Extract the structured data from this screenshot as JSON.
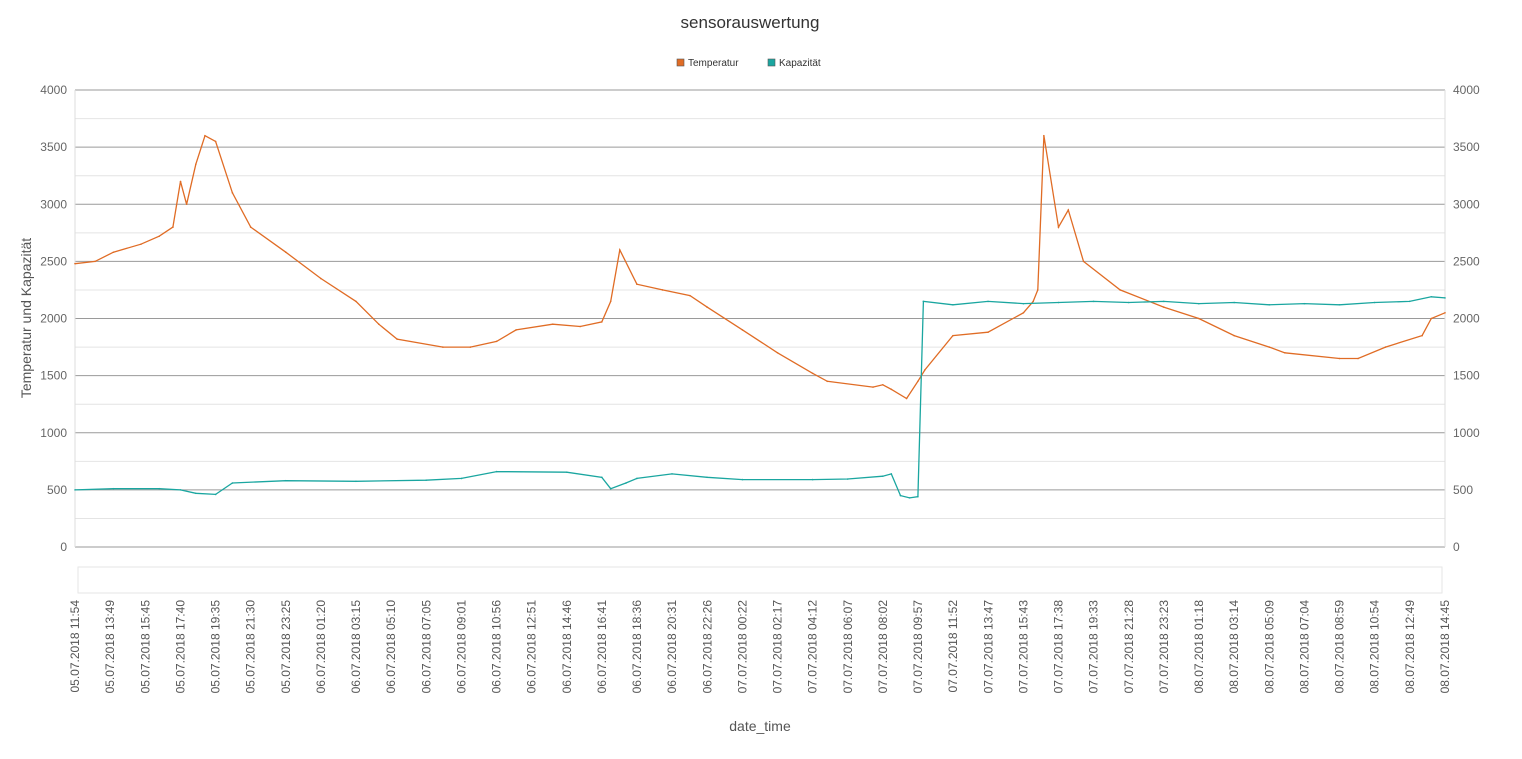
{
  "chart_data": {
    "type": "line",
    "title": "sensorauswertung",
    "xlabel": "date_time",
    "ylabel": "Temperatur und Kapazität",
    "ylim": [
      0,
      4000
    ],
    "yticks": [
      "0",
      "500",
      "1000",
      "1500",
      "2000",
      "2500",
      "3000",
      "3500",
      "4000"
    ],
    "y_major_step": 500,
    "grid": true,
    "legend_position": "top-center",
    "x_tick_labels": [
      "05.07.2018  11:54",
      "05.07.2018  13:49",
      "05.07.2018  15:45",
      "05.07.2018  17:40",
      "05.07.2018  19:35",
      "05.07.2018  21:30",
      "05.07.2018  23:25",
      "06.07.2018  01:20",
      "06.07.2018  03:15",
      "06.07.2018  05:10",
      "06.07.2018  07:05",
      "06.07.2018  09:01",
      "06.07.2018  10:56",
      "06.07.2018  12:51",
      "06.07.2018  14:46",
      "06.07.2018  16:41",
      "06.07.2018  18:36",
      "06.07.2018  20:31",
      "06.07.2018  22:26",
      "07.07.2018  00:22",
      "07.07.2018  02:17",
      "07.07.2018  04:12",
      "07.07.2018  06:07",
      "07.07.2018  08:02",
      "07.07.2018  09:57",
      "07.07.2018  11:52",
      "07.07.2018  13:47",
      "07.07.2018  15:43",
      "07.07.2018  17:38",
      "07.07.2018  19:33",
      "07.07.2018  21:28",
      "07.07.2018  23:23",
      "08.07.2018  01:18",
      "08.07.2018  03:14",
      "08.07.2018  05:09",
      "08.07.2018  07:04",
      "08.07.2018  08:59",
      "08.07.2018  10:54",
      "08.07.2018  12:49",
      "08.07.2018  14:45"
    ],
    "x_range": [
      "05.07.2018 11:54",
      "08.07.2018 14:45"
    ],
    "series": [
      {
        "name": "Temperatur",
        "color": "#e06c25",
        "x": [
          "05.07.2018 11:54",
          "05.07.2018 13:00",
          "05.07.2018 14:00",
          "05.07.2018 15:30",
          "05.07.2018 16:30",
          "05.07.2018 17:15",
          "05.07.2018 17:40",
          "05.07.2018 18:00",
          "05.07.2018 18:30",
          "05.07.2018 19:00",
          "05.07.2018 19:35",
          "05.07.2018 20:30",
          "05.07.2018 21:30",
          "05.07.2018 23:25",
          "06.07.2018 01:20",
          "06.07.2018 03:15",
          "06.07.2018 04:30",
          "06.07.2018 05:30",
          "06.07.2018 08:00",
          "06.07.2018 09:30",
          "06.07.2018 10:56",
          "06.07.2018 12:00",
          "06.07.2018 14:00",
          "06.07.2018 15:30",
          "06.07.2018 16:41",
          "06.07.2018 17:10",
          "06.07.2018 17:40",
          "06.07.2018 18:36",
          "06.07.2018 20:00",
          "06.07.2018 21:30",
          "06.07.2018 22:26",
          "07.07.2018 00:22",
          "07.07.2018 02:17",
          "07.07.2018 04:12",
          "07.07.2018 05:00",
          "07.07.2018 07:30",
          "07.07.2018 08:02",
          "07.07.2018 08:30",
          "07.07.2018 09:20",
          "07.07.2018 09:57",
          "07.07.2018 10:20",
          "07.07.2018 11:52",
          "07.07.2018 13:47",
          "07.07.2018 15:43",
          "07.07.2018 16:15",
          "07.07.2018 16:30",
          "07.07.2018 16:50",
          "07.07.2018 17:38",
          "07.07.2018 18:10",
          "07.07.2018 19:00",
          "07.07.2018 21:00",
          "07.07.2018 23:23",
          "08.07.2018 01:18",
          "08.07.2018 03:14",
          "08.07.2018 05:09",
          "08.07.2018 06:00",
          "08.07.2018 08:59",
          "08.07.2018 10:00",
          "08.07.2018 11:30",
          "08.07.2018 13:30",
          "08.07.2018 14:00",
          "08.07.2018 14:45"
        ],
        "values": [
          2480,
          2500,
          2580,
          2650,
          2720,
          2800,
          3200,
          3000,
          3350,
          3600,
          3550,
          3100,
          2800,
          2580,
          2350,
          2150,
          1950,
          1820,
          1750,
          1750,
          1800,
          1900,
          1950,
          1930,
          1970,
          2150,
          2600,
          2300,
          2250,
          2200,
          2100,
          1900,
          1700,
          1520,
          1450,
          1400,
          1420,
          1380,
          1300,
          1450,
          1550,
          1850,
          1880,
          2050,
          2150,
          2250,
          3600,
          2800,
          2950,
          2500,
          2250,
          2100,
          2000,
          1850,
          1750,
          1700,
          1650,
          1650,
          1750,
          1850,
          2000,
          2050
        ]
      },
      {
        "name": "Kapazität",
        "color": "#1aa6a0",
        "x": [
          "05.07.2018 11:54",
          "05.07.2018 14:00",
          "05.07.2018 16:30",
          "05.07.2018 17:40",
          "05.07.2018 18:30",
          "05.07.2018 19:35",
          "05.07.2018 20:30",
          "05.07.2018 23:25",
          "06.07.2018 03:15",
          "06.07.2018 07:05",
          "06.07.2018 09:01",
          "06.07.2018 10:56",
          "06.07.2018 14:46",
          "06.07.2018 16:41",
          "06.07.2018 17:10",
          "06.07.2018 18:00",
          "06.07.2018 18:36",
          "06.07.2018 20:31",
          "06.07.2018 22:26",
          "07.07.2018 00:22",
          "07.07.2018 04:12",
          "07.07.2018 06:07",
          "07.07.2018 08:02",
          "07.07.2018 08:30",
          "07.07.2018 09:00",
          "07.07.2018 09:30",
          "07.07.2018 09:57",
          "07.07.2018 10:15",
          "07.07.2018 11:52",
          "07.07.2018 13:47",
          "07.07.2018 15:43",
          "07.07.2018 17:38",
          "07.07.2018 19:33",
          "07.07.2018 21:28",
          "07.07.2018 23:23",
          "08.07.2018 01:18",
          "08.07.2018 03:14",
          "08.07.2018 05:09",
          "08.07.2018 07:04",
          "08.07.2018 08:59",
          "08.07.2018 10:54",
          "08.07.2018 12:49",
          "08.07.2018 14:00",
          "08.07.2018 14:45"
        ],
        "values": [
          500,
          510,
          510,
          500,
          470,
          460,
          560,
          580,
          575,
          585,
          600,
          660,
          655,
          610,
          510,
          560,
          600,
          640,
          610,
          590,
          590,
          595,
          620,
          640,
          450,
          430,
          440,
          2150,
          2120,
          2150,
          2130,
          2140,
          2150,
          2140,
          2150,
          2130,
          2140,
          2120,
          2130,
          2120,
          2140,
          2150,
          2190,
          2180
        ]
      }
    ]
  }
}
